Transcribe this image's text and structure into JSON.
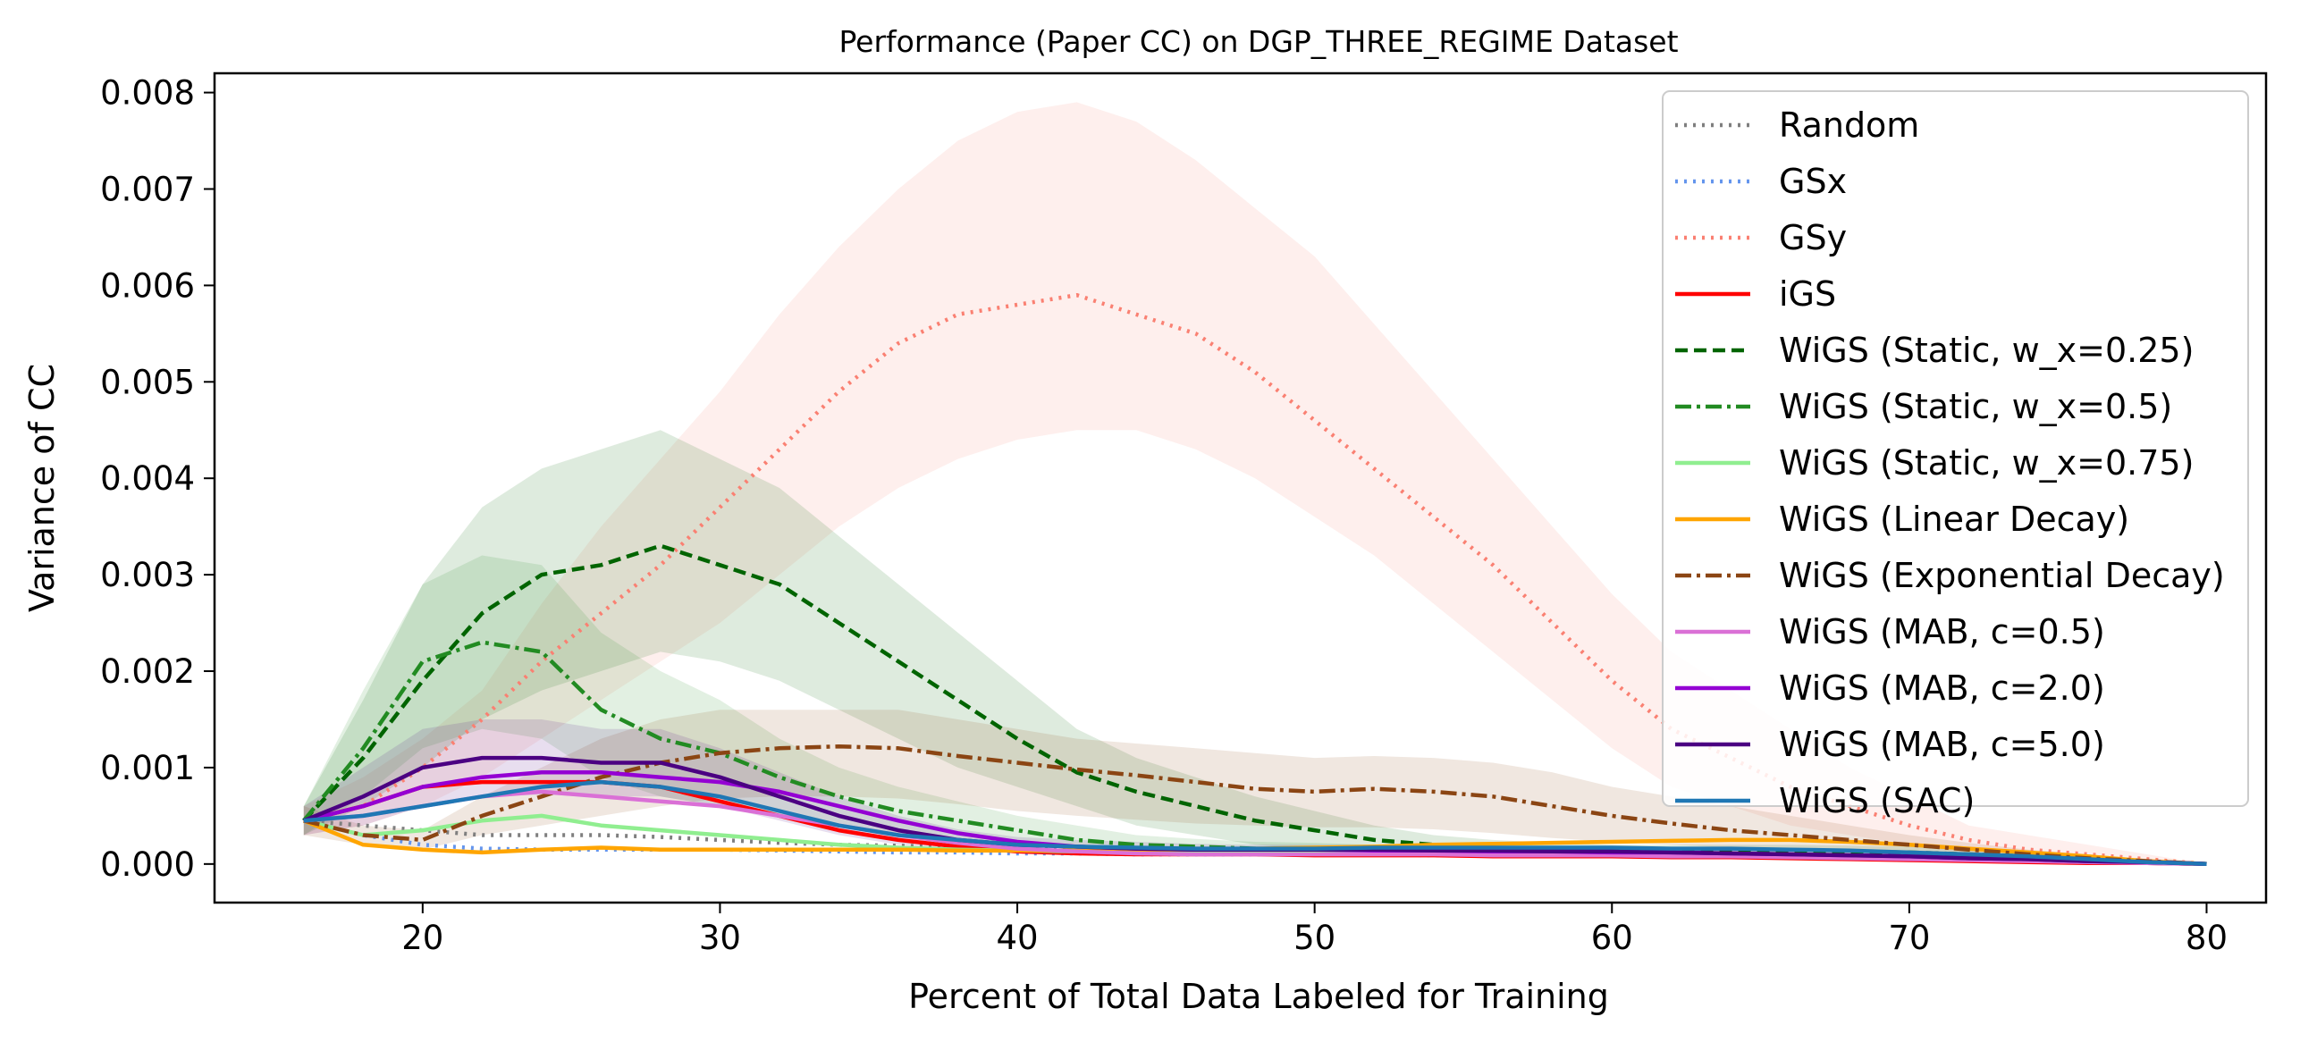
{
  "chart_data": {
    "type": "line",
    "title": "Performance (Paper CC) on DGP_THREE_REGIME Dataset",
    "xlabel": "Percent of Total Data Labeled for Training",
    "ylabel": "Variance of CC",
    "xlim": [
      13,
      82
    ],
    "ylim": [
      -0.0004,
      0.0082
    ],
    "xticks": [
      20,
      30,
      40,
      50,
      60,
      70,
      80
    ],
    "yticks": [
      0.0,
      0.001,
      0.002,
      0.003,
      0.004,
      0.005,
      0.006,
      0.007,
      0.008
    ],
    "ytick_labels": [
      "0.000",
      "0.001",
      "0.002",
      "0.003",
      "0.004",
      "0.005",
      "0.006",
      "0.007",
      "0.008"
    ],
    "grid": false,
    "legend_position": "top-right",
    "x": [
      16,
      18,
      20,
      22,
      24,
      26,
      28,
      30,
      32,
      34,
      36,
      38,
      40,
      42,
      44,
      46,
      48,
      50,
      52,
      54,
      56,
      58,
      60,
      62,
      64,
      66,
      68,
      70,
      72,
      74,
      76,
      78,
      80
    ],
    "series": [
      {
        "name": "Random",
        "color": "#7f7f7f",
        "dash": "dotted",
        "values": [
          0.00045,
          0.0004,
          0.00035,
          0.0003,
          0.0003,
          0.0003,
          0.00028,
          0.00025,
          0.00022,
          0.0002,
          0.00019,
          0.00018,
          0.00017,
          0.00016,
          0.00015,
          0.00015,
          0.00014,
          0.00014,
          0.00013,
          0.00013,
          0.00012,
          0.00012,
          0.00011,
          0.00011,
          0.0001,
          0.0001,
          9e-05,
          8e-05,
          7e-05,
          5e-05,
          4e-05,
          2e-05,
          0.0
        ]
      },
      {
        "name": "GSx",
        "color": "#6495ed",
        "dash": "dotted",
        "values": [
          0.00045,
          0.0003,
          0.0002,
          0.00016,
          0.00015,
          0.00015,
          0.00015,
          0.00015,
          0.00014,
          0.00013,
          0.00012,
          0.00012,
          0.00011,
          0.00011,
          0.0001,
          0.0001,
          0.0001,
          0.0001,
          0.0001,
          9e-05,
          9e-05,
          9e-05,
          9e-05,
          8e-05,
          8e-05,
          7e-05,
          7e-05,
          6e-05,
          5e-05,
          4e-05,
          3e-05,
          2e-05,
          0.0
        ]
      },
      {
        "name": "GSy",
        "color": "#fa8072",
        "dash": "dotted",
        "values": [
          0.00045,
          0.0006,
          0.001,
          0.0015,
          0.0021,
          0.0026,
          0.0031,
          0.0037,
          0.0043,
          0.0049,
          0.0054,
          0.0057,
          0.0058,
          0.0059,
          0.0057,
          0.0055,
          0.0051,
          0.0046,
          0.0041,
          0.0036,
          0.0031,
          0.0025,
          0.0019,
          0.0014,
          0.0011,
          0.0008,
          0.0006,
          0.0004,
          0.00025,
          0.00015,
          0.0001,
          5e-05,
          0.0
        ],
        "band_lower": [
          0.0003,
          0.0004,
          0.0006,
          0.0009,
          0.0013,
          0.0017,
          0.0021,
          0.0025,
          0.003,
          0.0035,
          0.0039,
          0.0042,
          0.0044,
          0.0045,
          0.0045,
          0.0043,
          0.004,
          0.0036,
          0.0032,
          0.0027,
          0.0022,
          0.0017,
          0.0012,
          0.0008,
          0.0006,
          0.0004,
          0.0003,
          0.0002,
          0.0001,
          5e-05,
          3e-05,
          1e-05,
          0.0
        ],
        "band_upper": [
          0.0006,
          0.0009,
          0.0013,
          0.0018,
          0.0027,
          0.0035,
          0.0042,
          0.0049,
          0.0057,
          0.0064,
          0.007,
          0.0075,
          0.0078,
          0.0079,
          0.0077,
          0.0073,
          0.0068,
          0.0063,
          0.0056,
          0.0049,
          0.0042,
          0.0035,
          0.0028,
          0.0022,
          0.0018,
          0.0014,
          0.001,
          0.0007,
          0.0004,
          0.0003,
          0.0002,
          0.0001,
          0.0
        ]
      },
      {
        "name": "iGS",
        "color": "#ff0000",
        "dash": "solid",
        "values": [
          0.00045,
          0.0006,
          0.0008,
          0.00085,
          0.00085,
          0.00085,
          0.0008,
          0.00065,
          0.0005,
          0.00035,
          0.00025,
          0.00018,
          0.00013,
          0.00011,
          0.0001,
          0.0001,
          0.0001,
          9e-05,
          9e-05,
          9e-05,
          8e-05,
          8e-05,
          8e-05,
          7e-05,
          7e-05,
          6e-05,
          5e-05,
          4e-05,
          3e-05,
          2e-05,
          1e-05,
          1e-05,
          0.0
        ]
      },
      {
        "name": "WiGS (Static, w_x=0.25)",
        "color": "#006400",
        "dash": "dashed",
        "values": [
          0.00045,
          0.0011,
          0.0019,
          0.0026,
          0.003,
          0.0031,
          0.0033,
          0.0031,
          0.0029,
          0.0025,
          0.0021,
          0.0017,
          0.0013,
          0.00095,
          0.00075,
          0.0006,
          0.00045,
          0.00035,
          0.00025,
          0.0002,
          0.00015,
          0.00014,
          0.00014,
          0.00014,
          0.00014,
          0.00014,
          0.00013,
          0.00012,
          0.0001,
          8e-05,
          5e-05,
          2e-05,
          0.0
        ],
        "band_lower": [
          0.0003,
          0.0006,
          0.001,
          0.0015,
          0.0018,
          0.002,
          0.0022,
          0.0021,
          0.0019,
          0.0016,
          0.0013,
          0.001,
          0.0008,
          0.0006,
          0.0004,
          0.0003,
          0.0002,
          0.00015,
          0.0001,
          0.0001,
          8e-05,
          8e-05,
          8e-05,
          8e-05,
          8e-05,
          8e-05,
          7e-05,
          6e-05,
          5e-05,
          4e-05,
          2e-05,
          1e-05,
          0.0
        ],
        "band_upper": [
          0.0006,
          0.0017,
          0.0029,
          0.0037,
          0.0041,
          0.0043,
          0.0045,
          0.0042,
          0.0039,
          0.0034,
          0.0029,
          0.0024,
          0.0019,
          0.0014,
          0.0011,
          0.0009,
          0.0007,
          0.00055,
          0.0004,
          0.0003,
          0.00025,
          0.00022,
          0.0002,
          0.0002,
          0.0002,
          0.0002,
          0.00019,
          0.00018,
          0.00015,
          0.00012,
          8e-05,
          4e-05,
          0.0
        ]
      },
      {
        "name": "WiGS (Static, w_x=0.5)",
        "color": "#228b22",
        "dash": "dashdot",
        "values": [
          0.00045,
          0.0012,
          0.0021,
          0.0023,
          0.0022,
          0.0016,
          0.0013,
          0.00115,
          0.0009,
          0.0007,
          0.00055,
          0.00045,
          0.00035,
          0.00025,
          0.0002,
          0.00018,
          0.00016,
          0.00015,
          0.00014,
          0.00013,
          0.00012,
          0.00011,
          0.0001,
          0.0001,
          0.0001,
          9e-05,
          8e-05,
          7e-05,
          6e-05,
          5e-05,
          3e-05,
          2e-05,
          0.0
        ],
        "band_lower": [
          0.0003,
          0.0007,
          0.0012,
          0.0014,
          0.0013,
          0.0009,
          0.0007,
          0.0006,
          0.0005,
          0.0004,
          0.0003,
          0.00025,
          0.0002,
          0.00015,
          0.00012,
          0.0001,
          9e-05,
          8e-05,
          8e-05,
          7e-05,
          7e-05,
          6e-05,
          6e-05,
          6e-05,
          6e-05,
          5e-05,
          5e-05,
          4e-05,
          4e-05,
          3e-05,
          2e-05,
          1e-05,
          0.0
        ],
        "band_upper": [
          0.0006,
          0.0018,
          0.0029,
          0.0032,
          0.0031,
          0.0024,
          0.002,
          0.0017,
          0.0013,
          0.001,
          0.0008,
          0.00065,
          0.0005,
          0.0004,
          0.0003,
          0.00026,
          0.00023,
          0.00022,
          0.0002,
          0.00019,
          0.00018,
          0.00016,
          0.00015,
          0.00015,
          0.00015,
          0.00014,
          0.00012,
          0.0001,
          9e-05,
          7e-05,
          5e-05,
          3e-05,
          0.0
        ]
      },
      {
        "name": "WiGS (Static, w_x=0.75)",
        "color": "#90ee90",
        "dash": "solid",
        "values": [
          0.00045,
          0.0003,
          0.00035,
          0.00045,
          0.0005,
          0.0004,
          0.00035,
          0.0003,
          0.00025,
          0.0002,
          0.00017,
          0.00015,
          0.00014,
          0.00013,
          0.00013,
          0.00012,
          0.00012,
          0.00012,
          0.00011,
          0.00011,
          0.00011,
          0.0001,
          0.0001,
          0.0001,
          9e-05,
          9e-05,
          8e-05,
          7e-05,
          6e-05,
          5e-05,
          3e-05,
          2e-05,
          0.0
        ]
      },
      {
        "name": "WiGS (Linear Decay)",
        "color": "#ffa500",
        "dash": "solid",
        "values": [
          0.00045,
          0.0002,
          0.00015,
          0.00012,
          0.00015,
          0.00017,
          0.00015,
          0.00015,
          0.00015,
          0.00015,
          0.00015,
          0.00014,
          0.00014,
          0.00014,
          0.00015,
          0.00015,
          0.00016,
          0.00017,
          0.00018,
          0.0002,
          0.00021,
          0.00022,
          0.00023,
          0.00024,
          0.00025,
          0.00025,
          0.00023,
          0.0002,
          0.00016,
          0.00012,
          8e-05,
          3e-05,
          0.0
        ]
      },
      {
        "name": "WiGS (Exponential Decay)",
        "color": "#8b4513",
        "dash": "dashdot",
        "values": [
          0.00045,
          0.0003,
          0.00025,
          0.0005,
          0.0007,
          0.0009,
          0.00105,
          0.00115,
          0.0012,
          0.00122,
          0.0012,
          0.00112,
          0.00105,
          0.00098,
          0.00092,
          0.00085,
          0.00078,
          0.00075,
          0.00078,
          0.00075,
          0.0007,
          0.0006,
          0.0005,
          0.00042,
          0.00035,
          0.0003,
          0.00025,
          0.0002,
          0.00015,
          0.0001,
          6e-05,
          3e-05,
          0.0
        ],
        "band_lower": [
          0.0003,
          0.0002,
          0.00015,
          0.0003,
          0.0004,
          0.0005,
          0.0006,
          0.00068,
          0.0007,
          0.0007,
          0.00068,
          0.00062,
          0.00055,
          0.0005,
          0.00046,
          0.00042,
          0.0004,
          0.00038,
          0.00038,
          0.00036,
          0.00032,
          0.00027,
          0.00023,
          0.0002,
          0.00017,
          0.00014,
          0.00012,
          0.0001,
          7e-05,
          5e-05,
          3e-05,
          1e-05,
          0.0
        ],
        "band_upper": [
          0.0006,
          0.0004,
          0.00035,
          0.0007,
          0.001,
          0.0013,
          0.0015,
          0.0016,
          0.0016,
          0.0016,
          0.0016,
          0.0015,
          0.0014,
          0.0013,
          0.00125,
          0.0012,
          0.00115,
          0.0011,
          0.00112,
          0.0011,
          0.00105,
          0.00095,
          0.0008,
          0.0007,
          0.0006,
          0.0005,
          0.0004,
          0.0003,
          0.00022,
          0.00015,
          0.0001,
          5e-05,
          0.0
        ]
      },
      {
        "name": "WiGS (MAB, c=0.5)",
        "color": "#da70d6",
        "dash": "solid",
        "values": [
          0.00045,
          0.0005,
          0.0006,
          0.0007,
          0.00075,
          0.0007,
          0.00065,
          0.0006,
          0.0005,
          0.0004,
          0.0003,
          0.00022,
          0.00016,
          0.00013,
          0.00011,
          0.0001,
          0.0001,
          0.0001,
          0.0001,
          0.0001,
          9e-05,
          9e-05,
          9e-05,
          8e-05,
          8e-05,
          7e-05,
          6e-05,
          5e-05,
          4e-05,
          3e-05,
          2e-05,
          1e-05,
          0.0
        ]
      },
      {
        "name": "WiGS (MAB, c=2.0)",
        "color": "#9400d3",
        "dash": "solid",
        "values": [
          0.00045,
          0.0006,
          0.0008,
          0.0009,
          0.00095,
          0.00095,
          0.0009,
          0.00085,
          0.00075,
          0.0006,
          0.00045,
          0.00032,
          0.00023,
          0.00018,
          0.00016,
          0.00015,
          0.00015,
          0.00015,
          0.00014,
          0.00014,
          0.00013,
          0.00013,
          0.00012,
          0.00012,
          0.00011,
          0.0001,
          9e-05,
          8e-05,
          6e-05,
          5e-05,
          3e-05,
          2e-05,
          0.0
        ]
      },
      {
        "name": "WiGS (MAB, c=5.0)",
        "color": "#4b0082",
        "dash": "solid",
        "values": [
          0.00045,
          0.0007,
          0.001,
          0.0011,
          0.0011,
          0.00105,
          0.00105,
          0.0009,
          0.0007,
          0.0005,
          0.00035,
          0.00025,
          0.0002,
          0.00018,
          0.00016,
          0.00015,
          0.00015,
          0.00015,
          0.00015,
          0.00014,
          0.00014,
          0.00013,
          0.00013,
          0.00012,
          0.00011,
          0.0001,
          9e-05,
          8e-05,
          6e-05,
          5e-05,
          3e-05,
          2e-05,
          0.0
        ],
        "band_lower": [
          0.0003,
          0.0004,
          0.0006,
          0.0007,
          0.00072,
          0.0007,
          0.0007,
          0.0006,
          0.00045,
          0.0003,
          0.0002,
          0.00015,
          0.00012,
          0.0001,
          0.0001,
          9e-05,
          9e-05,
          9e-05,
          9e-05,
          8e-05,
          8e-05,
          8e-05,
          8e-05,
          7e-05,
          7e-05,
          6e-05,
          5e-05,
          5e-05,
          4e-05,
          3e-05,
          2e-05,
          1e-05,
          0.0
        ],
        "band_upper": [
          0.0006,
          0.001,
          0.0014,
          0.0015,
          0.0015,
          0.0014,
          0.0014,
          0.0012,
          0.00095,
          0.0007,
          0.0005,
          0.00036,
          0.00028,
          0.00025,
          0.00023,
          0.00021,
          0.0002,
          0.0002,
          0.0002,
          0.0002,
          0.00019,
          0.00018,
          0.00018,
          0.00017,
          0.00015,
          0.00014,
          0.00013,
          0.00011,
          9e-05,
          7e-05,
          5e-05,
          3e-05,
          0.0
        ]
      },
      {
        "name": "WiGS (SAC)",
        "color": "#1f77b4",
        "dash": "solid",
        "values": [
          0.00045,
          0.0005,
          0.0006,
          0.0007,
          0.0008,
          0.00085,
          0.0008,
          0.0007,
          0.00055,
          0.0004,
          0.0003,
          0.00025,
          0.0002,
          0.00018,
          0.00017,
          0.00016,
          0.00016,
          0.00016,
          0.00017,
          0.00017,
          0.00017,
          0.00017,
          0.00017,
          0.00016,
          0.00016,
          0.00015,
          0.00014,
          0.00012,
          0.0001,
          8e-05,
          5e-05,
          2e-05,
          0.0
        ]
      }
    ]
  }
}
